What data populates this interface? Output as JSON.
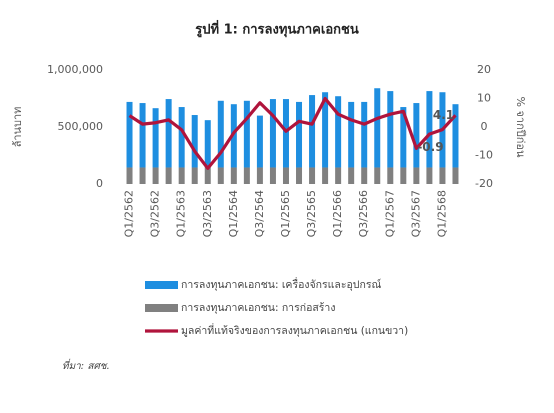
{
  "chart_data": {
    "type": "bar-line",
    "title": "รูปที่ 1: การลงทุนภาคเอกชน",
    "y_label": "ล้านบาท",
    "y2_label": "% จากปีก่อน",
    "source": "ที่มา: สศช.",
    "categories": [
      "Q1/2562",
      null,
      "Q3/2562",
      null,
      "Q1/2563",
      null,
      "Q3/2563",
      null,
      "Q1/2564",
      null,
      "Q3/2564",
      null,
      "Q1/2565",
      null,
      "Q3/2565",
      null,
      "Q1/2566",
      null,
      "Q3/2566",
      null,
      "Q1/2567",
      null,
      "Q3/2567",
      null,
      "Q1/2568",
      null
    ],
    "ylim": [
      0,
      1000000
    ],
    "yticks": [
      0,
      {
        "value": 500000,
        "label": "500,000"
      },
      {
        "value": 1000000,
        "label": "1,000,000"
      }
    ],
    "y2lim": [
      -20,
      20
    ],
    "y2ticks": [
      -20,
      -10,
      0,
      10,
      20
    ],
    "series": [
      {
        "name": "การลงทุนภาคเอกชน: เครื่องจักรและอุปกรณ์",
        "type": "bar",
        "color": "#1e8ee0",
        "values": [
          575000,
          565000,
          520000,
          600000,
          530000,
          460000,
          415000,
          585000,
          555000,
          585000,
          455000,
          600000,
          600000,
          575000,
          635000,
          660000,
          625000,
          575000,
          575000,
          695000,
          670000,
          530000,
          565000,
          670000,
          660000,
          555000
        ]
      },
      {
        "name": "การลงทุนภาคเอกชน: การก่อสร้าง",
        "type": "bar",
        "color": "#808080",
        "values": [
          145000,
          145000,
          145000,
          145000,
          145000,
          145000,
          145000,
          145000,
          145000,
          145000,
          145000,
          145000,
          145000,
          145000,
          145000,
          145000,
          145000,
          145000,
          145000,
          145000,
          145000,
          145000,
          145000,
          145000,
          145000,
          145000
        ]
      },
      {
        "name": "มูลค่าที่แท้จริงของการลงทุนภาคเอกชน (แกนขวา)",
        "type": "line",
        "axis": "y2",
        "color": "#b0143c",
        "values": [
          4,
          1,
          1.5,
          2.5,
          -1,
          -8.5,
          -14.5,
          -9,
          -2,
          3,
          8.5,
          4,
          -1.5,
          2,
          1,
          10,
          4.5,
          2.5,
          1,
          3,
          4.5,
          5.5,
          -7.5,
          -2.5,
          -0.9,
          4.1
        ],
        "value_labels": [
          null,
          null,
          null,
          null,
          null,
          null,
          null,
          null,
          null,
          null,
          null,
          null,
          null,
          null,
          null,
          null,
          null,
          null,
          null,
          null,
          null,
          null,
          null,
          null,
          "-0.9",
          "4.1"
        ]
      }
    ]
  }
}
